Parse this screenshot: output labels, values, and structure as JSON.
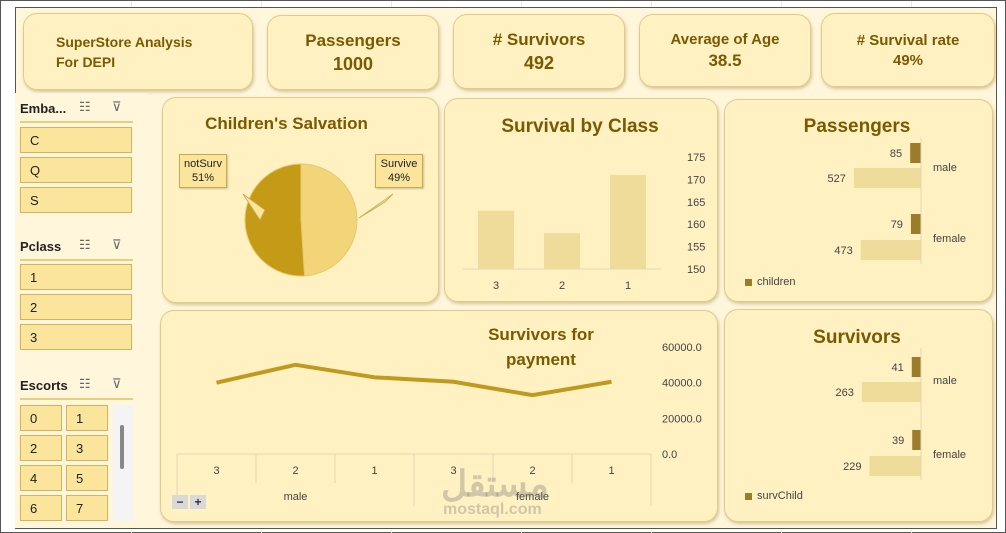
{
  "kpis": {
    "title_line1": "SuperStore Analysis",
    "title_line2": "For DEPI",
    "passengers_label": "Passengers",
    "passengers_value": "1000",
    "survivors_label": "# Survivors",
    "survivors_value": "492",
    "avg_age_label": "Average of Age",
    "avg_age_value": "38.5",
    "survival_rate_label": "# Survival rate",
    "survival_rate_value": "49%"
  },
  "slicers": {
    "embarked": {
      "title": "Emba...",
      "items": [
        "C",
        "Q",
        "S"
      ]
    },
    "pclass": {
      "title": "Pclass",
      "items": [
        "1",
        "2",
        "3"
      ]
    },
    "escorts": {
      "title": "Escorts",
      "items": [
        "0",
        "1",
        "2",
        "3",
        "4",
        "5",
        "6",
        "7"
      ]
    }
  },
  "colors": {
    "accent": "#7a5a00",
    "bar_light": "#f0dc9a",
    "bar_dark": "#9b7c2b",
    "line": "#c09a1e",
    "pie_dark": "#c49a16",
    "pie_light": "#f2d479"
  },
  "watermark": {
    "arabic": "مستقل",
    "latin": "mostaql.com"
  },
  "chart_data": [
    {
      "type": "pie",
      "title": "Children's Salvation",
      "labels": [
        "notSurv",
        "Survive"
      ],
      "values": [
        51,
        49
      ],
      "value_labels": [
        "51%",
        "49%"
      ]
    },
    {
      "type": "bar",
      "title": "Survival by Class",
      "categories": [
        "3",
        "2",
        "1"
      ],
      "values": [
        163,
        158,
        171
      ],
      "ylim": [
        150,
        175
      ],
      "yticks": [
        "175",
        "170",
        "165",
        "160",
        "155",
        "150"
      ]
    },
    {
      "type": "bar",
      "orientation": "horizontal",
      "title": "Passengers",
      "categories": [
        "male",
        "female"
      ],
      "series": [
        {
          "name": "",
          "values": [
            527,
            473
          ]
        },
        {
          "name": "children",
          "values": [
            85,
            79
          ]
        }
      ],
      "legend": "bottom-left"
    },
    {
      "type": "line",
      "title_line1": "Survivors for",
      "title_line2": "payment",
      "categories": [
        "3",
        "2",
        "1",
        "3",
        "2",
        "1"
      ],
      "groups": [
        "male",
        "female"
      ],
      "values": [
        40000,
        50000,
        43000,
        40500,
        33000,
        40500
      ],
      "ylim": [
        0,
        60000
      ],
      "yticks": [
        "60000.0",
        "40000.0",
        "20000.0",
        "0.0"
      ]
    },
    {
      "type": "bar",
      "orientation": "horizontal",
      "title": "Survivors",
      "categories": [
        "male",
        "female"
      ],
      "series": [
        {
          "name": "",
          "values": [
            263,
            229
          ]
        },
        {
          "name": "survChild",
          "values": [
            41,
            39
          ]
        }
      ],
      "legend": "bottom-left"
    }
  ]
}
